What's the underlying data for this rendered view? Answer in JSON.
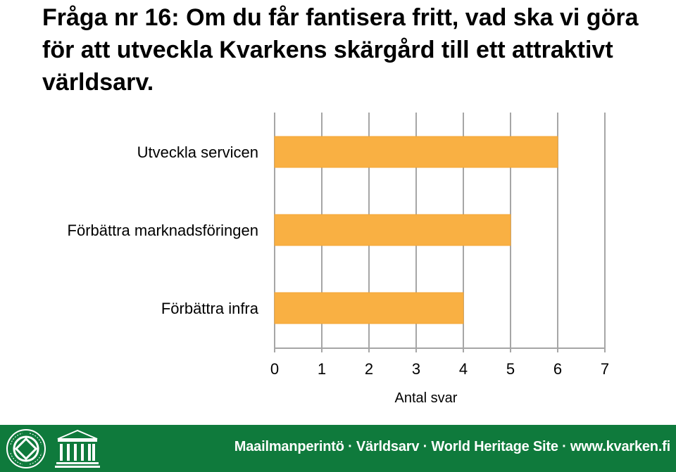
{
  "title": "Fråga nr 16: Om du får fantisera fritt, vad ska vi göra för att utveckla Kvarkens skärgård till ett attraktivt världsarv.",
  "colors": {
    "bar": "#f9b043",
    "bar_stroke": "#f4a634",
    "grid": "#a6a6a6",
    "footer": "#0f7a3c",
    "footer_text": "#ffffff"
  },
  "chart_data": {
    "type": "bar",
    "orientation": "horizontal",
    "categories": [
      "Utveckla servicen",
      "Förbättra marknadsföringen",
      "Förbättra infra"
    ],
    "values": [
      6,
      5,
      4
    ],
    "xlabel": "Antal svar",
    "ylabel": "",
    "xlim": [
      0,
      7
    ],
    "ticks": [
      0,
      1,
      2,
      3,
      4,
      5,
      6,
      7
    ],
    "grid": true,
    "legend": "none"
  },
  "footer": {
    "text": "Maailmanperintö · Världsarv · World Heritage Site · www.kvarken.fi",
    "whs_emblem_text": "VÄRLDSARV · MAAILMANPERINTÖ · WORLD HERITAGE · PATRIMOINE MONDIAL · PATRIMONIO MUNDIAL",
    "unesco_logo_text": "UNESCO",
    "icons": [
      "world-heritage-emblem-icon",
      "unesco-temple-icon"
    ]
  }
}
